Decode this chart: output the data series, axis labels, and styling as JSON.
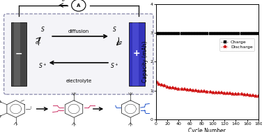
{
  "charge_x": [
    1,
    5,
    10,
    15,
    20,
    25,
    30,
    35,
    40,
    45,
    50,
    55,
    60,
    65,
    70,
    75,
    80,
    85,
    90,
    95,
    100,
    105,
    110,
    115,
    120,
    125,
    130,
    135,
    140,
    145,
    150,
    155,
    160,
    165,
    170,
    175,
    180
  ],
  "charge_y": [
    2.98,
    2.98,
    2.98,
    2.98,
    2.98,
    2.98,
    2.98,
    2.98,
    2.98,
    2.98,
    2.98,
    2.98,
    2.98,
    2.98,
    2.98,
    2.98,
    2.98,
    2.98,
    2.98,
    2.98,
    2.98,
    2.98,
    2.98,
    2.98,
    2.98,
    2.98,
    2.98,
    2.98,
    2.98,
    2.98,
    2.98,
    2.98,
    2.98,
    2.98,
    2.98,
    2.98,
    2.98
  ],
  "discharge_x": [
    1,
    5,
    10,
    15,
    20,
    25,
    30,
    35,
    40,
    45,
    50,
    55,
    60,
    65,
    70,
    75,
    80,
    85,
    90,
    95,
    100,
    105,
    110,
    115,
    120,
    125,
    130,
    135,
    140,
    145,
    150,
    155,
    160,
    165,
    170,
    175,
    180
  ],
  "discharge_y": [
    1.28,
    1.22,
    1.18,
    1.15,
    1.12,
    1.1,
    1.08,
    1.06,
    1.05,
    1.04,
    1.03,
    1.02,
    1.01,
    1.0,
    0.99,
    0.98,
    0.97,
    0.96,
    0.95,
    0.94,
    0.93,
    0.93,
    0.92,
    0.91,
    0.9,
    0.9,
    0.89,
    0.88,
    0.87,
    0.87,
    0.86,
    0.85,
    0.84,
    0.83,
    0.82,
    0.81,
    0.8
  ],
  "charge_color": "#000000",
  "discharge_color": "#cc0000",
  "ylabel": "Capacity (mAh)",
  "xlabel": "Cycle Number",
  "ylim": [
    0,
    4
  ],
  "xlim": [
    0,
    180
  ],
  "yticks": [
    0,
    1,
    2,
    3,
    4
  ],
  "xticks": [
    0,
    20,
    40,
    60,
    80,
    100,
    120,
    140,
    160,
    180
  ],
  "legend_charge": "Charge",
  "legend_discharge": "Discharge",
  "bg_color": "#ffffff",
  "panel_split": 0.6,
  "neg_electrode_color": "#444444",
  "pos_electrode_color": "#3333bb",
  "box_edge_color": "#8888aa",
  "box_face_color": "#f4f4f8"
}
